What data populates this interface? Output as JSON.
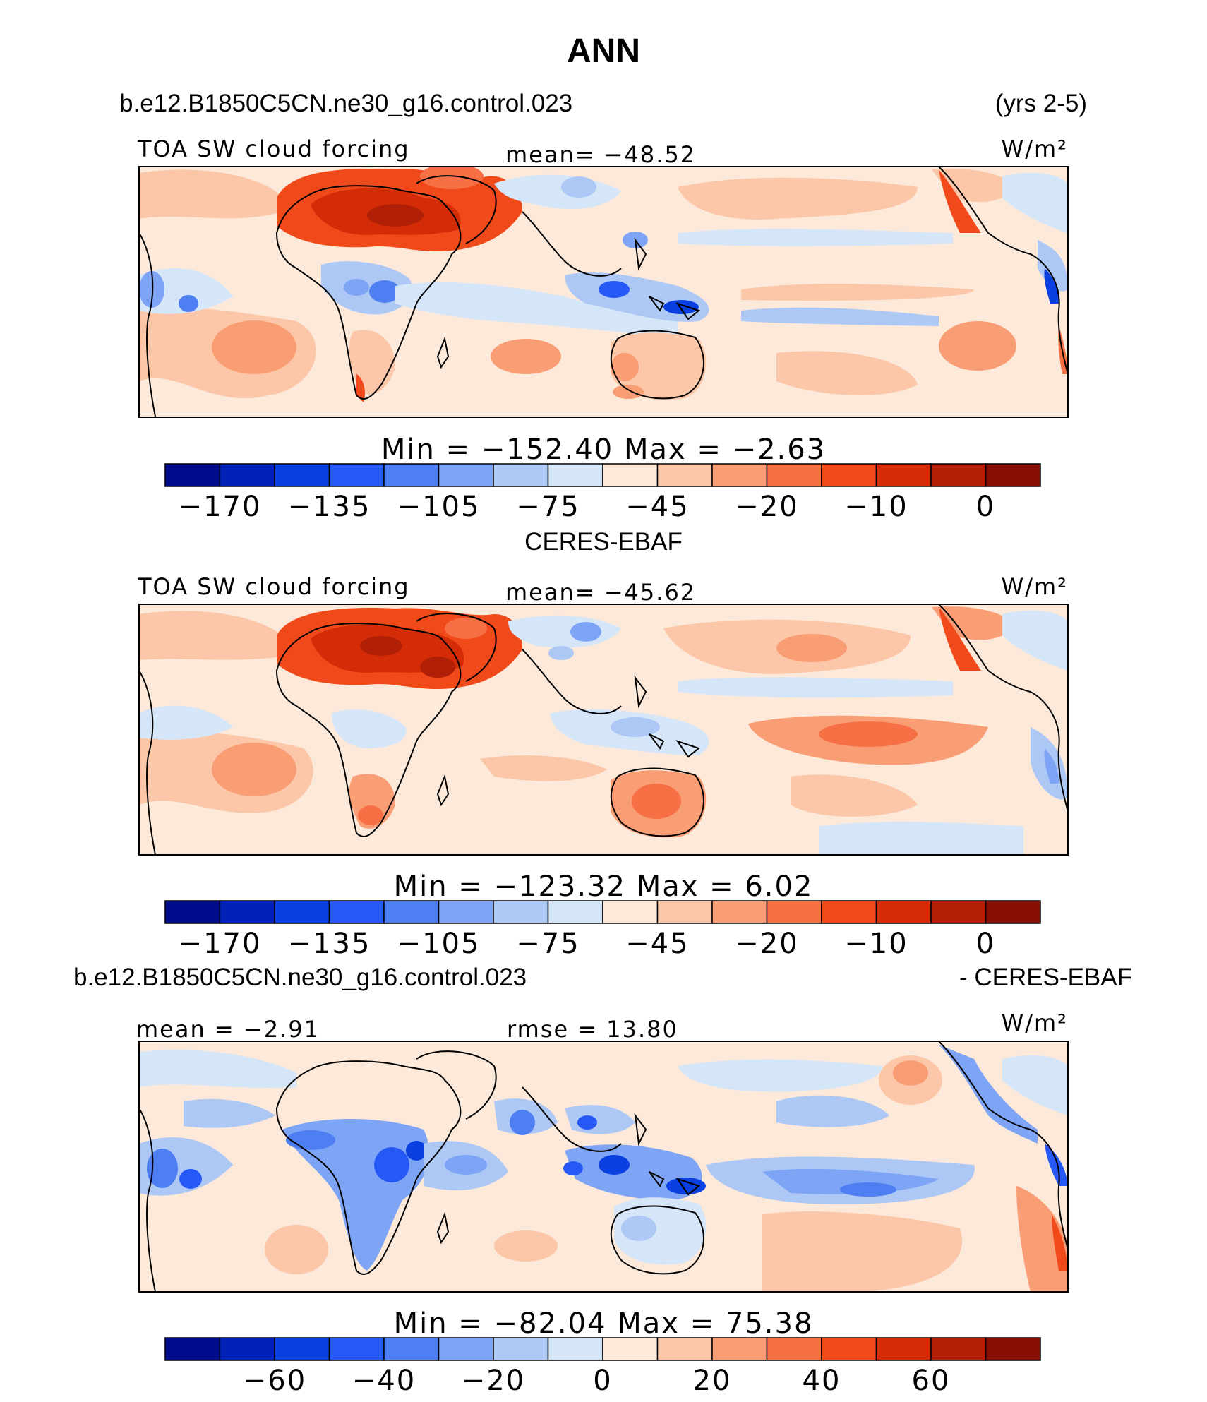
{
  "header": {
    "title": "ANN",
    "case_name": "b.e12.B1850C5CN.ne30_g16.control.023",
    "years": "(yrs 2-5)"
  },
  "colors": {
    "palette": [
      "#000b8c",
      "#0022b8",
      "#0a3fe0",
      "#2658f5",
      "#4d7ef2",
      "#7ea4f5",
      "#aec8f6",
      "#d6e6f9",
      "#fde9d9",
      "#fcc7a9",
      "#f99d75",
      "#f76f45",
      "#f04a1b",
      "#d52c08",
      "#b01f06",
      "#870e05"
    ]
  },
  "panels": [
    {
      "subtitle": "",
      "left_label": "TOA SW cloud forcing",
      "center_label": "mean= −48.52",
      "units": "W/m²",
      "minmax": "Min  =  −152.40  Max  =    −2.63"
    },
    {
      "subtitle": "CERES-EBAF",
      "left_label": "TOA SW cloud forcing",
      "center_label": "mean= −45.62",
      "units": "W/m²",
      "minmax": "Min  =  −123.32  Max  =     6.02"
    },
    {
      "subtitle_left": "b.e12.B1850C5CN.ne30_g16.control.023",
      "subtitle_right": "- CERES-EBAF",
      "left_label": "mean =   −2.91",
      "center_label": "rmse =   13.80",
      "units": "W/m²",
      "minmax": "Min  =  −82.04  Max  =   75.38"
    }
  ],
  "chart_data": [
    {
      "type": "heatmap",
      "title": "TOA SW cloud forcing",
      "mean": -48.52,
      "min": -152.4,
      "max": -2.63,
      "units": "W/m²",
      "colorbar_ticks": [
        "−170",
        "−135",
        "−105",
        "−75",
        "−45",
        "−20",
        "−10",
        "0"
      ]
    },
    {
      "type": "heatmap",
      "title": "TOA SW cloud forcing",
      "dataset": "CERES-EBAF",
      "mean": -45.62,
      "min": -123.32,
      "max": 6.02,
      "units": "W/m²",
      "colorbar_ticks": [
        "−170",
        "−135",
        "−105",
        "−75",
        "−45",
        "−20",
        "−10",
        "0"
      ]
    },
    {
      "type": "heatmap",
      "title": "b.e12.B1850C5CN.ne30_g16.control.023 - CERES-EBAF",
      "mean": -2.91,
      "rmse": 13.8,
      "min": -82.04,
      "max": 75.38,
      "units": "W/m²",
      "colorbar_ticks": [
        "−60",
        "−40",
        "−20",
        "0",
        "20",
        "40",
        "60"
      ]
    }
  ]
}
